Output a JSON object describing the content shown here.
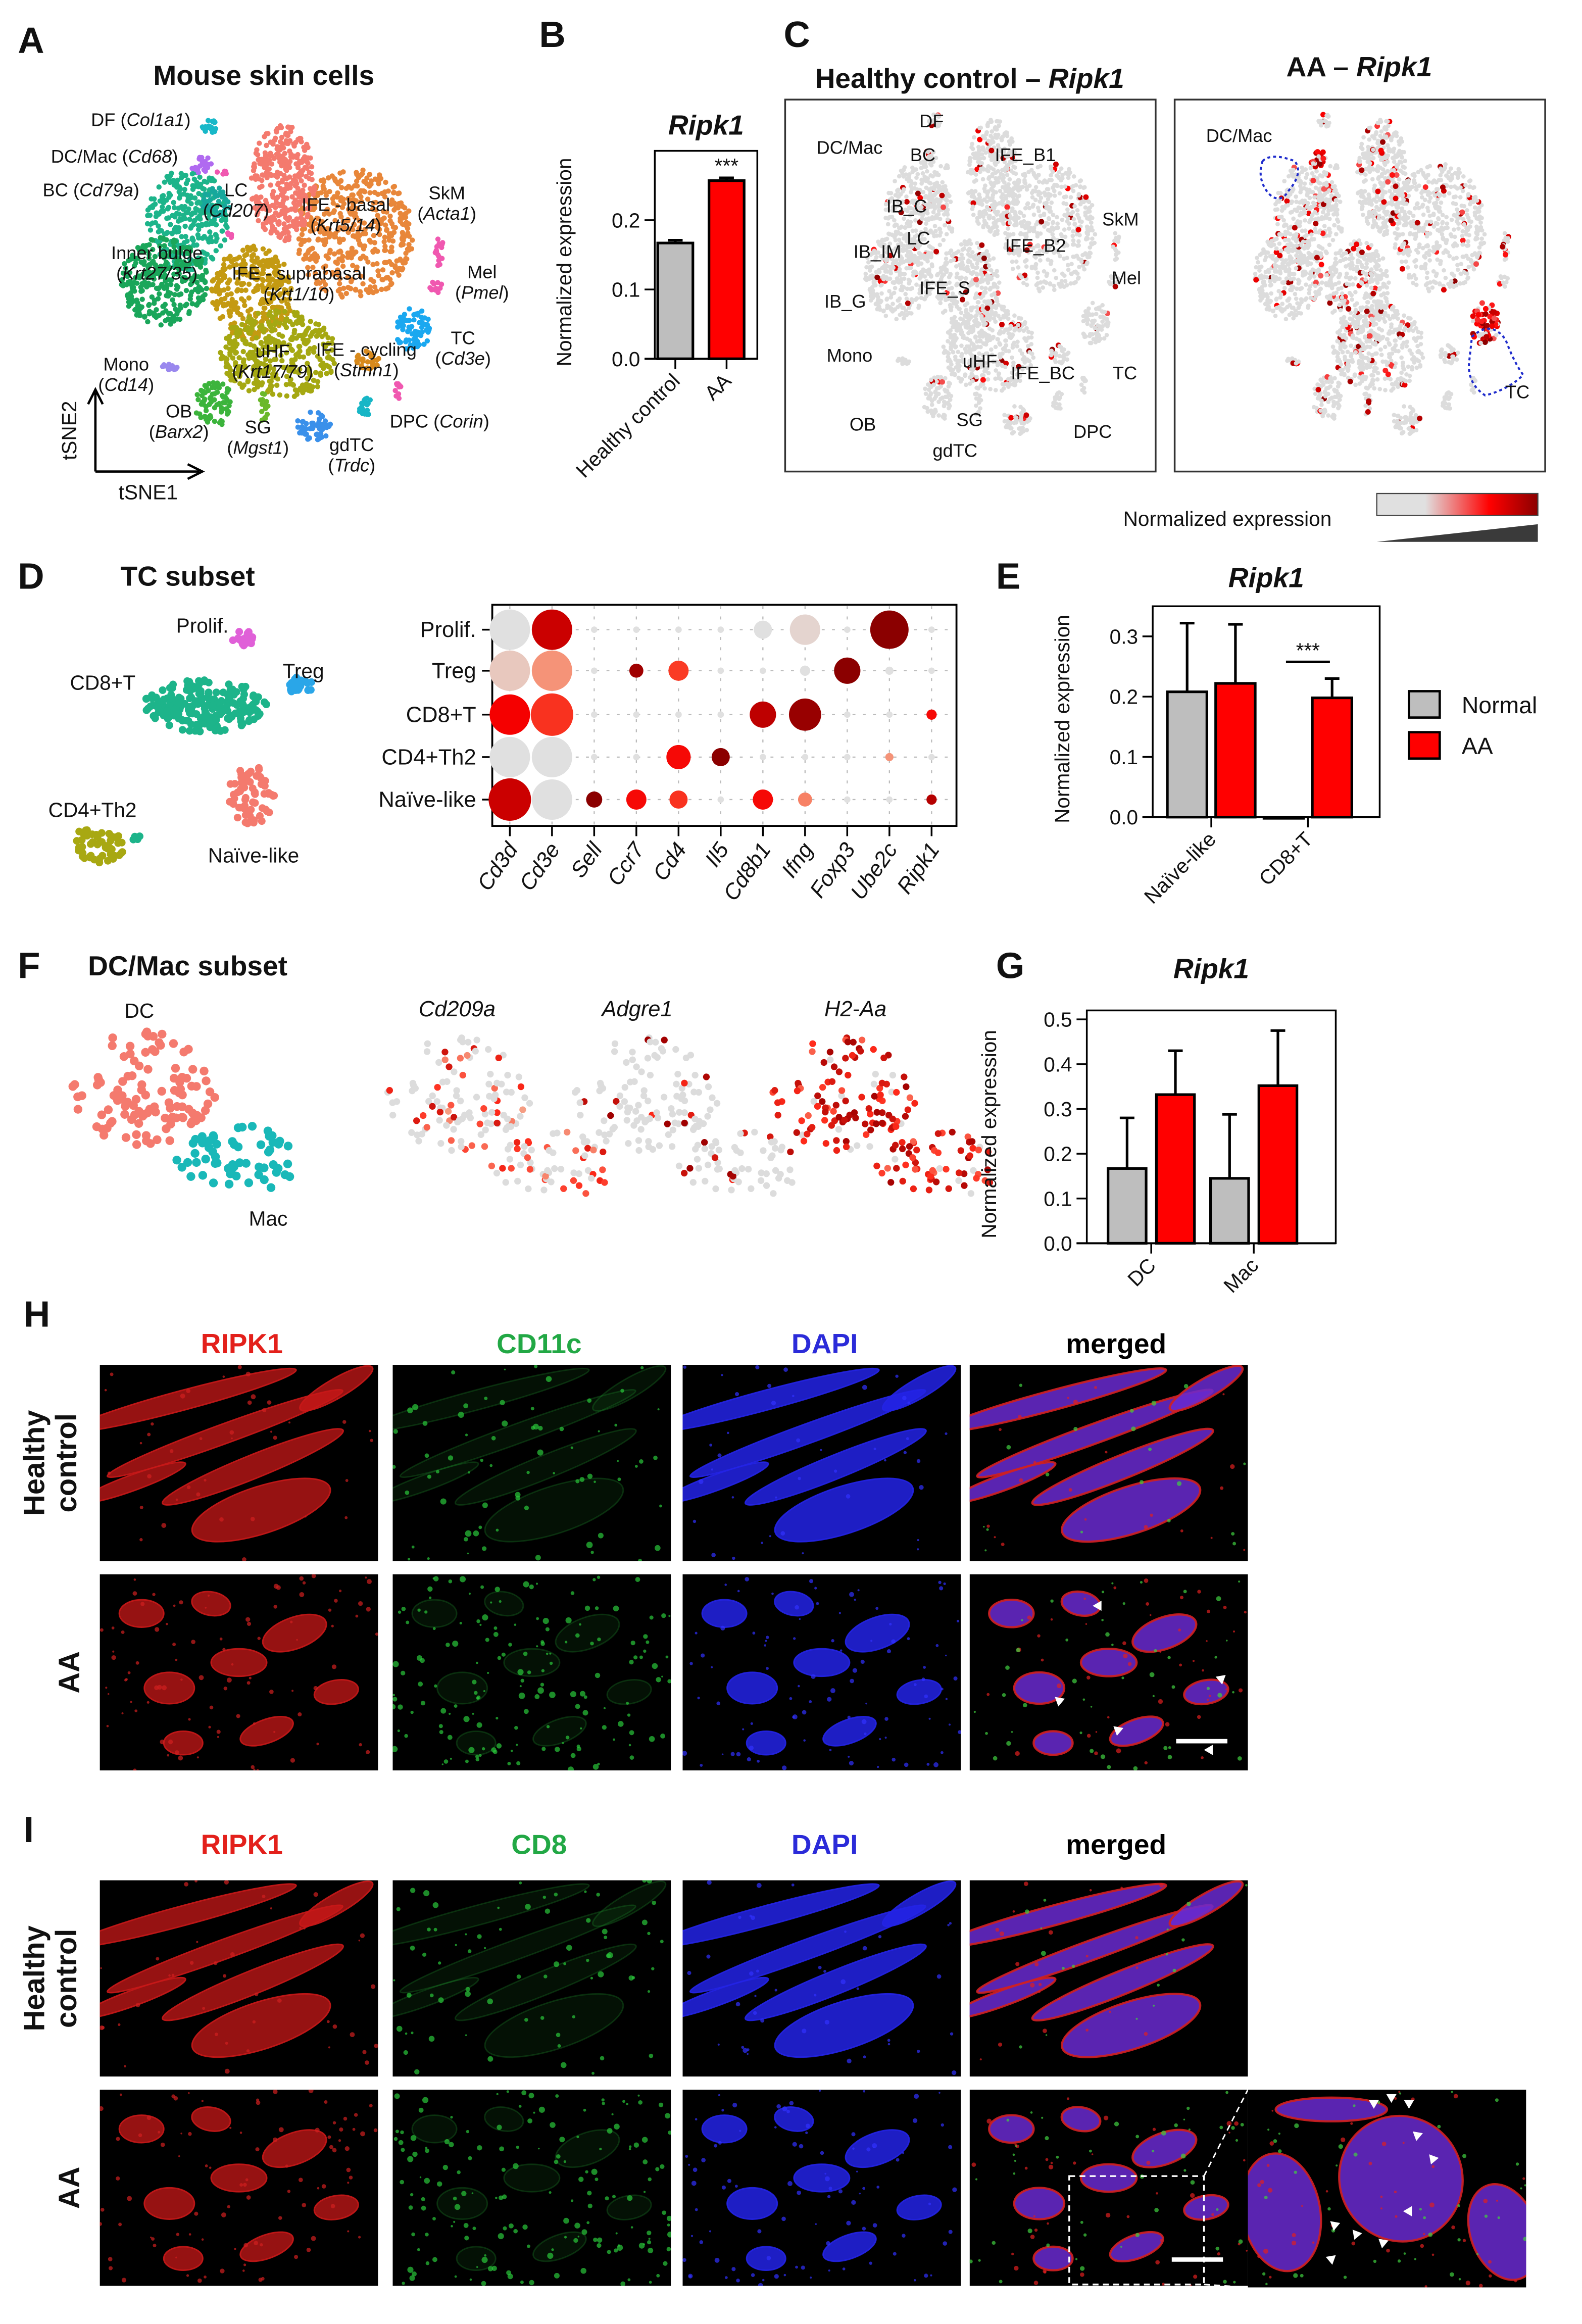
{
  "figure": {
    "A": {
      "letter": "A",
      "title": "Mouse skin cells",
      "x_axis": "tSNE1",
      "y_axis": "tSNE2",
      "clusters": [
        {
          "name": "DF",
          "marker": "Col1a1"
        },
        {
          "name": "DC/Mac",
          "marker": "Cd68"
        },
        {
          "name": "BC",
          "marker": "Cd79a"
        },
        {
          "name": "LC",
          "marker": "Cd207"
        },
        {
          "name": "IFE - basal",
          "marker": "Krt5/14"
        },
        {
          "name": "SkM",
          "marker": "Acta1"
        },
        {
          "name": "Inner bulge",
          "marker": "Krt27/35"
        },
        {
          "name": "IFE - suprabasal",
          "marker": "Krt1/10"
        },
        {
          "name": "Mel",
          "marker": "Pmel"
        },
        {
          "name": "TC",
          "marker": "Cd3e"
        },
        {
          "name": "uHF",
          "marker": "Krt17/79"
        },
        {
          "name": "IFE - cycling",
          "marker": "Stmn1"
        },
        {
          "name": "Mono",
          "marker": "Cd14"
        },
        {
          "name": "OB",
          "marker": "Barx2"
        },
        {
          "name": "SG",
          "marker": "Mgst1"
        },
        {
          "name": "gdTC",
          "marker": "Trdc"
        },
        {
          "name": "DPC",
          "marker": "Corin"
        }
      ]
    },
    "B": {
      "letter": "B"
    },
    "C": {
      "letter": "C",
      "titles": [
        {
          "prefix": "Healthy control – ",
          "gene": "Ripk1"
        },
        {
          "prefix": "AA – ",
          "gene": "Ripk1"
        }
      ],
      "healthy_labels": [
        "DF",
        "DC/Mac",
        "BC",
        "IFE_B1",
        "IB_C",
        "LC",
        "IB_IM",
        "IFE_B2",
        "SkM",
        "IFE_S",
        "Mel",
        "IB_G",
        "Mono",
        "uHF",
        "IFE_BC",
        "TC",
        "OB",
        "SG",
        "DPC",
        "gdTC"
      ],
      "aa_labels": [
        "DC/Mac",
        "TC"
      ],
      "colorbar_label": "Normalized expression",
      "colorbar_colors": [
        "#e0e0e0",
        "#ff0000",
        "#8b0000"
      ],
      "outline_color": "#1f2ccc"
    },
    "D": {
      "letter": "D",
      "title": "TC subset",
      "clusters": [
        "Prolif.",
        "CD8+T",
        "Treg",
        "CD4+Th2",
        "Naïve-like"
      ]
    },
    "E": {
      "letter": "E"
    },
    "F": {
      "letter": "F",
      "title": "DC/Mac subset",
      "clusters": [
        "DC",
        "Mac"
      ],
      "genes": [
        "Cd209a",
        "Adgre1",
        "H2-Aa"
      ]
    },
    "G": {
      "letter": "G"
    },
    "H": {
      "letter": "H",
      "channels": [
        {
          "label": "RIPK1",
          "color": "#e3201b"
        },
        {
          "label": "CD11c",
          "color": "#22a845"
        },
        {
          "label": "DAPI",
          "color": "#2b2bd9"
        },
        {
          "label": "merged",
          "color": "#000000"
        }
      ],
      "rows": [
        [
          "Healthy",
          "control"
        ],
        [
          "AA"
        ]
      ]
    },
    "I": {
      "letter": "I",
      "channels": [
        {
          "label": "RIPK1",
          "color": "#e3201b"
        },
        {
          "label": "CD8",
          "color": "#22a845"
        },
        {
          "label": "DAPI",
          "color": "#2b2bd9"
        },
        {
          "label": "merged",
          "color": "#000000"
        }
      ],
      "rows": [
        [
          "Healthy",
          "control"
        ],
        [
          "AA"
        ]
      ]
    }
  },
  "chart_data": [
    {
      "panel": "B",
      "type": "bar",
      "title": "Ripk1",
      "ylabel": "Normalized expression",
      "categories": [
        "Healthy control",
        "AA"
      ],
      "values": [
        0.167,
        0.257
      ],
      "error_upper": [
        0.171,
        0.261
      ],
      "colors": [
        "#bebebe",
        "#ff0000"
      ],
      "yticks": [
        "0.0",
        "0.1",
        "0.2"
      ],
      "ylim": [
        0,
        0.3
      ],
      "annotations": [
        {
          "category": "AA",
          "text": "***"
        }
      ]
    },
    {
      "panel": "D",
      "type": "dotplot",
      "rows": [
        "Prolif.",
        "Treg",
        "CD8+T",
        "CD4+Th2",
        "Naïve-like"
      ],
      "columns": [
        "Cd3d",
        "Cd3e",
        "Sell",
        "Ccr7",
        "Cd4",
        "Il5",
        "Cd8b1",
        "Ifng",
        "Foxp3",
        "Ube2c",
        "Ripk1"
      ],
      "fraction_expressing": [
        [
          1.0,
          1.0,
          0.08,
          0.05,
          0.1,
          0.05,
          0.45,
          0.75,
          0.08,
          0.95,
          0.15
        ],
        [
          1.0,
          1.0,
          0.1,
          0.35,
          0.5,
          0.08,
          0.12,
          0.25,
          0.65,
          0.2,
          0.15
        ],
        [
          1.0,
          1.05,
          0.05,
          0.05,
          0.05,
          0.05,
          0.65,
          0.8,
          0.05,
          0.1,
          0.25
        ],
        [
          1.0,
          1.0,
          0.05,
          0.05,
          0.6,
          0.45,
          0.12,
          0.15,
          0.05,
          0.2,
          0.12
        ],
        [
          1.05,
          1.0,
          0.4,
          0.5,
          0.45,
          0.05,
          0.5,
          0.35,
          0.05,
          0.1,
          0.25
        ]
      ],
      "relative_expression": [
        [
          0.0,
          0.85,
          0.0,
          0.0,
          0.0,
          0.0,
          0.0,
          0.05,
          0.0,
          1.0,
          0.0
        ],
        [
          0.1,
          0.3,
          0.0,
          0.95,
          0.55,
          0.0,
          0.0,
          0.0,
          1.0,
          0.0,
          0.0
        ],
        [
          0.75,
          0.58,
          0.0,
          0.0,
          0.0,
          0.0,
          0.88,
          0.97,
          0.0,
          0.0,
          0.72
        ],
        [
          0.0,
          0.0,
          0.0,
          0.0,
          0.72,
          1.0,
          0.0,
          0.0,
          0.0,
          0.3,
          0.0
        ],
        [
          0.85,
          0.0,
          1.0,
          0.72,
          0.58,
          0.0,
          0.72,
          0.35,
          0.0,
          0.0,
          0.9
        ]
      ],
      "color_scale": [
        "#e0e0e0",
        "#f4a58a",
        "#fb4a2e",
        "#f50000",
        "#8b0000"
      ]
    },
    {
      "panel": "E",
      "type": "bar",
      "title": "Ripk1",
      "ylabel": "Normalized expression",
      "categories": [
        "Naïve-like",
        "CD8+T"
      ],
      "series": [
        {
          "name": "Normal",
          "values": [
            0.208,
            0.0
          ],
          "error_upper": [
            0.322,
            null
          ],
          "color": "#bebebe"
        },
        {
          "name": "AA",
          "values": [
            0.222,
            0.198
          ],
          "error_upper": [
            0.32,
            0.23
          ],
          "color": "#ff0000"
        }
      ],
      "yticks": [
        "0.0",
        "0.1",
        "0.2",
        "0.3"
      ],
      "ylim": [
        0,
        0.35
      ],
      "legend": "right",
      "annotations": [
        {
          "category": "CD8+T",
          "text": "***"
        }
      ]
    },
    {
      "panel": "G",
      "type": "bar",
      "title": "Ripk1",
      "ylabel": "Normalized expression",
      "categories": [
        "DC",
        "Mac"
      ],
      "series": [
        {
          "name": "Normal",
          "values": [
            0.167,
            0.145
          ],
          "error_upper": [
            0.28,
            0.288
          ],
          "color": "#bebebe"
        },
        {
          "name": "AA",
          "values": [
            0.332,
            0.352
          ],
          "error_upper": [
            0.43,
            0.475
          ],
          "color": "#ff0000"
        }
      ],
      "yticks": [
        "0.0",
        "0.1",
        "0.2",
        "0.3",
        "0.4",
        "0.5"
      ],
      "ylim": [
        0,
        0.52
      ]
    }
  ]
}
